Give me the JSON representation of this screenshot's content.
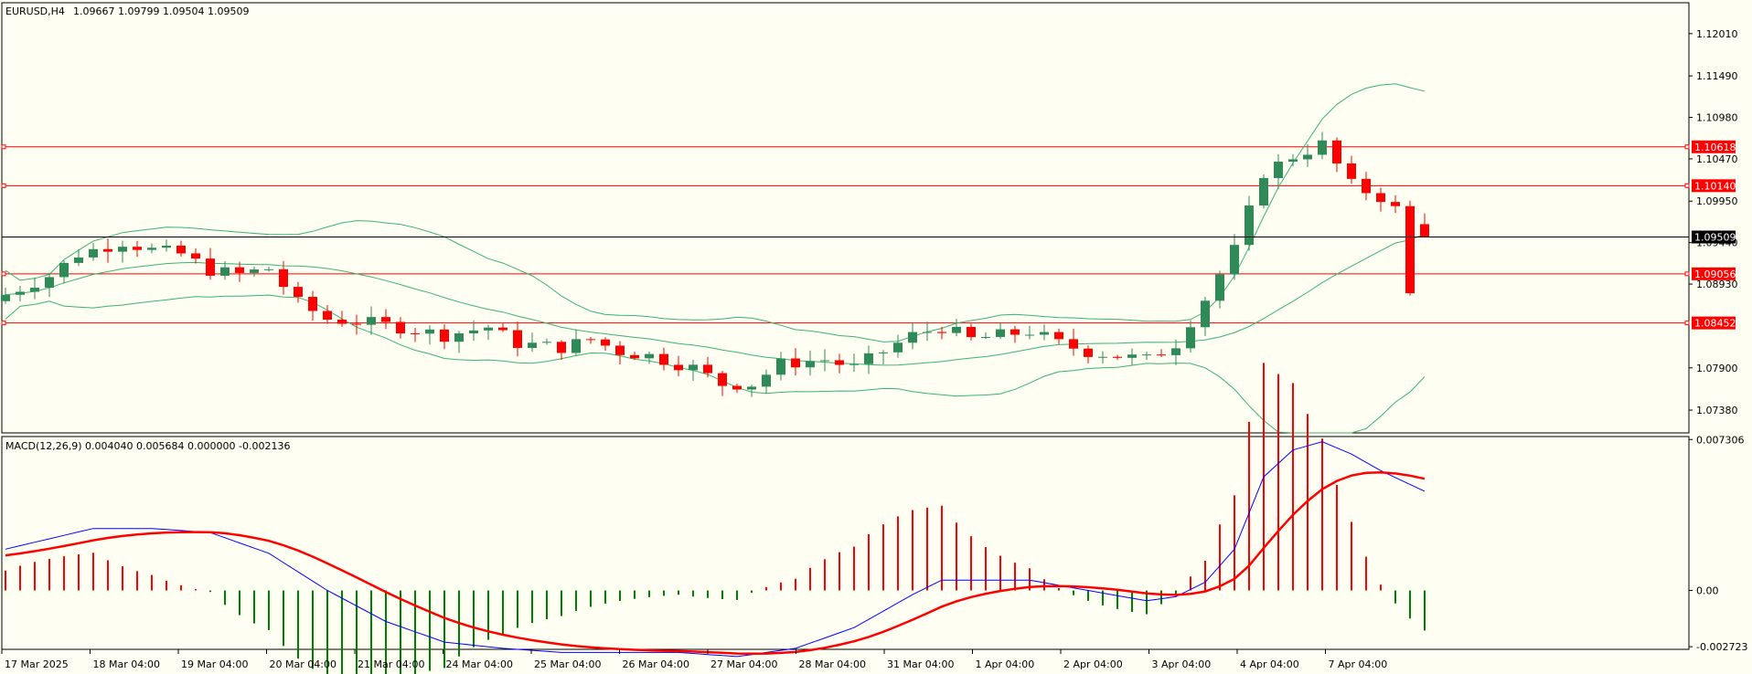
{
  "main": {
    "symbol_label": "EURUSD,H4",
    "ohlc_label": "1.09667 1.09799 1.09504 1.09509",
    "price_range": [
      1.071,
      1.1239
    ],
    "price_ticks": [
      "1.12010",
      "1.11490",
      "1.10980",
      "1.10470",
      "1.09950",
      "1.09440",
      "1.08930",
      "1.07900",
      "1.07380"
    ],
    "current_price": {
      "value": 1.09509,
      "label": "1.09509"
    },
    "levels": [
      {
        "value": 1.10618,
        "label": "1.10618"
      },
      {
        "value": 1.1014,
        "label": "1.10140"
      },
      {
        "value": 1.09056,
        "label": "1.09056"
      },
      {
        "value": 1.08452,
        "label": "1.08452"
      }
    ],
    "colors": {
      "bull": "#2e8b57",
      "bear": "#ff0000",
      "bands": "#3cb371",
      "level": "#ff0000",
      "background": "#fefef2"
    }
  },
  "macd": {
    "label": "MACD(12,26,9) 0.004040 0.005684 0.000000 -0.002136",
    "range": [
      -0.00285,
      0.00745
    ],
    "ticks": [
      {
        "value": 0.007306,
        "label": "0.007306"
      },
      {
        "value": 0.0,
        "label": "0.00"
      },
      {
        "value": -0.002723,
        "label": "-0.002723"
      }
    ],
    "colors": {
      "macd_line": "#0000ff",
      "signal_line": "#ff0000",
      "hist_pos": "#ff0000",
      "hist_neg": "#008000"
    }
  },
  "time_axis": {
    "labels": [
      "17 Mar 2025",
      "18 Mar 04:00",
      "19 Mar 04:00",
      "20 Mar 04:00",
      "21 Mar 04:00",
      "24 Mar 04:00",
      "25 Mar 04:00",
      "26 Mar 04:00",
      "27 Mar 04:00",
      "28 Mar 04:00",
      "31 Mar 04:00",
      "1 Apr 04:00",
      "2 Apr 04:00",
      "3 Apr 04:00",
      "4 Apr 04:00",
      "7 Apr 04:00"
    ]
  },
  "chart_data": {
    "type": "candlestick",
    "price_anchors": [
      [
        0,
        1.088
      ],
      [
        3,
        1.0903
      ],
      [
        5,
        1.093
      ],
      [
        8,
        1.0945
      ],
      [
        10,
        1.0935
      ],
      [
        12,
        1.093
      ],
      [
        14,
        1.091
      ],
      [
        16,
        1.0905
      ],
      [
        18,
        1.0912
      ],
      [
        20,
        1.087
      ],
      [
        22,
        1.085
      ],
      [
        25,
        1.0845
      ],
      [
        27,
        1.084
      ],
      [
        30,
        1.083
      ],
      [
        33,
        1.084
      ],
      [
        35,
        1.082
      ],
      [
        38,
        1.0815
      ],
      [
        40,
        1.0825
      ],
      [
        42,
        1.081
      ],
      [
        44,
        1.0805
      ],
      [
        47,
        1.079
      ],
      [
        49,
        1.077
      ],
      [
        51,
        1.077
      ],
      [
        53,
        1.0795
      ],
      [
        56,
        1.08
      ],
      [
        58,
        1.079
      ],
      [
        60,
        1.081
      ],
      [
        62,
        1.083
      ],
      [
        64,
        1.084
      ],
      [
        66,
        1.0825
      ],
      [
        68,
        1.083
      ],
      [
        70,
        1.0835
      ],
      [
        72,
        1.082
      ],
      [
        74,
        1.081
      ],
      [
        76,
        1.0805
      ],
      [
        78,
        1.08
      ],
      [
        80,
        1.082
      ],
      [
        82,
        1.0875
      ],
      [
        84,
        1.0935
      ],
      [
        86,
        1.103
      ],
      [
        88,
        1.105
      ],
      [
        90,
        1.1065
      ],
      [
        92,
        1.1015
      ],
      [
        94,
        1.1
      ],
      [
        95,
        1.0985
      ],
      [
        96,
        1.088
      ],
      [
        97,
        1.096
      ]
    ],
    "macd_anchors": [
      [
        0,
        0.002
      ],
      [
        6,
        0.003
      ],
      [
        10,
        0.003
      ],
      [
        14,
        0.0028
      ],
      [
        18,
        0.0018
      ],
      [
        22,
        0.0
      ],
      [
        26,
        -0.0015
      ],
      [
        30,
        -0.0025
      ],
      [
        34,
        -0.0028
      ],
      [
        38,
        -0.003
      ],
      [
        42,
        -0.003
      ],
      [
        46,
        -0.003
      ],
      [
        50,
        -0.0032
      ],
      [
        54,
        -0.0028
      ],
      [
        58,
        -0.0018
      ],
      [
        62,
        -0.0002
      ],
      [
        64,
        0.0005
      ],
      [
        66,
        0.0005
      ],
      [
        70,
        0.0005
      ],
      [
        74,
        0.0
      ],
      [
        78,
        -0.0005
      ],
      [
        80,
        -0.0003
      ],
      [
        82,
        0.0004
      ],
      [
        84,
        0.002
      ],
      [
        86,
        0.0055
      ],
      [
        88,
        0.0068
      ],
      [
        90,
        0.0072
      ],
      [
        92,
        0.0066
      ],
      [
        94,
        0.0058
      ],
      [
        97,
        0.0048
      ]
    ],
    "signal_period": 9,
    "bands_period": 20,
    "bands_deviation": 2
  }
}
